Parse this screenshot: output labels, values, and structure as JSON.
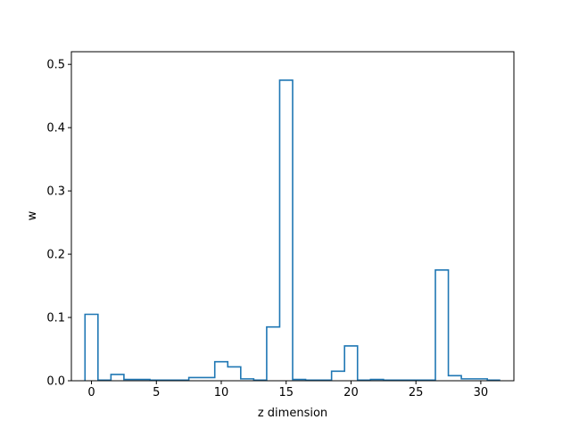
{
  "chart_data": {
    "type": "step",
    "xlabel": "z dimension",
    "ylabel": "w",
    "xlim": [
      -1.55,
      32.55
    ],
    "ylim": [
      0,
      0.52
    ],
    "xticks": [
      0,
      5,
      10,
      15,
      20,
      25,
      30
    ],
    "yticks": [
      0.0,
      0.1,
      0.2,
      0.3,
      0.4,
      0.5
    ],
    "xtick_labels": [
      "0",
      "5",
      "10",
      "15",
      "20",
      "25",
      "30"
    ],
    "ytick_labels": [
      "0.0",
      "0.1",
      "0.2",
      "0.3",
      "0.4",
      "0.5"
    ],
    "color": "#1f77b4",
    "series": [
      {
        "x": [
          0,
          1,
          2,
          3,
          4,
          5,
          6,
          7,
          8,
          9,
          10,
          11,
          12,
          13,
          14,
          15,
          16,
          17,
          18,
          19,
          20,
          21,
          22,
          23,
          24,
          25,
          26,
          27,
          28,
          29,
          30,
          31
        ],
        "values": [
          0.105,
          0.001,
          0.01,
          0.002,
          0.002,
          0.001,
          0.001,
          0.001,
          0.005,
          0.005,
          0.03,
          0.022,
          0.003,
          0.001,
          0.085,
          0.475,
          0.002,
          0.001,
          0.001,
          0.015,
          0.055,
          0.001,
          0.002,
          0.001,
          0.001,
          0.001,
          0.001,
          0.175,
          0.008,
          0.003,
          0.003,
          0.001
        ]
      }
    ]
  }
}
